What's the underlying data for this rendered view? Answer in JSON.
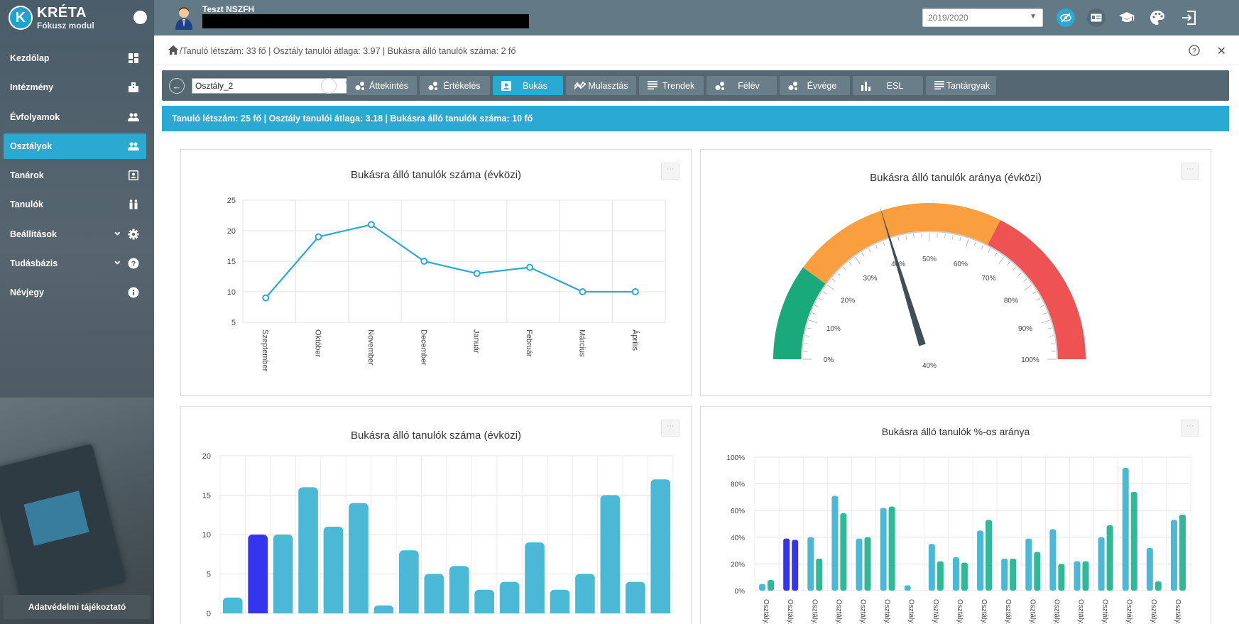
{
  "brand": {
    "name": "KRÉTA",
    "subtitle": "Fókusz modul",
    "logo_letter": "K"
  },
  "sidebar": {
    "items": [
      {
        "label": "Kezdőlap",
        "icon": "dashboard-icon",
        "active": false,
        "expandable": false
      },
      {
        "label": "Intézmény",
        "icon": "building-icon",
        "active": false,
        "expandable": false
      },
      {
        "label": "Évfolyamok",
        "icon": "users-icon",
        "active": false,
        "expandable": false
      },
      {
        "label": "Osztályok",
        "icon": "users-icon",
        "active": true,
        "expandable": false
      },
      {
        "label": "Tanárok",
        "icon": "teacher-card-icon",
        "active": false,
        "expandable": false
      },
      {
        "label": "Tanulók",
        "icon": "students-icon",
        "active": false,
        "expandable": false
      },
      {
        "label": "Beállítások",
        "icon": "gear-icon",
        "active": false,
        "expandable": true
      },
      {
        "label": "Tudásbázis",
        "icon": "help-icon",
        "active": false,
        "expandable": true
      },
      {
        "label": "Névjegy",
        "icon": "info-icon",
        "active": false,
        "expandable": false
      }
    ],
    "privacy_label": "Adatvédelmi tájékoztató"
  },
  "header": {
    "user_name": "Teszt NSZFH",
    "school_year": "2019/2020",
    "icons": [
      "visibility-off-icon",
      "id-card-icon",
      "graduation-cap-icon",
      "palette-icon",
      "logout-icon"
    ]
  },
  "breadcrumb": {
    "text": "/Tanuló létszám: 33 fő | Osztály tanulói átlaga: 3.97 | Bukásra álló tanulók száma: 2 fő"
  },
  "toolbar": {
    "class_selected": "Osztály_2",
    "tabs": [
      {
        "label": "Áttekintés",
        "icon": "bubble-icon",
        "active": false
      },
      {
        "label": "Értékelés",
        "icon": "bubble-icon",
        "active": false
      },
      {
        "label": "Bukás",
        "icon": "contact-icon",
        "active": true
      },
      {
        "label": "Mulasztás",
        "icon": "trend-icon",
        "active": false
      },
      {
        "label": "Trendek",
        "icon": "lines-icon",
        "active": false
      },
      {
        "label": "Félév",
        "icon": "bubble-icon",
        "active": false
      },
      {
        "label": "Évvége",
        "icon": "bubble-icon",
        "active": false
      },
      {
        "label": "ESL",
        "icon": "bar-chart-icon",
        "active": false
      },
      {
        "label": "Tantárgyak",
        "icon": "lines-icon",
        "active": false
      }
    ]
  },
  "info_strip": "Tanuló létszám: 25 fő | Osztály tanulói átlaga: 3.18 | Bukásra álló tanulók száma: 10 fő",
  "chart_data": [
    {
      "type": "line",
      "title": "Bukásra álló tanulók száma (évközi)",
      "categories": [
        "Szeptember",
        "Október",
        "November",
        "December",
        "Január",
        "Február",
        "Március",
        "Április"
      ],
      "values": [
        9,
        19,
        21,
        15,
        13,
        14,
        10,
        10
      ],
      "ylim": [
        5,
        25
      ],
      "yticks": [
        5,
        10,
        15,
        20,
        25
      ],
      "color": "#2aa9d2",
      "grid": true
    },
    {
      "type": "gauge",
      "title": "Bukásra álló tanulók aránya (évközi)",
      "value": 40,
      "value_label": "40%",
      "ticks": [
        "0%",
        "10%",
        "20%",
        "30%",
        "40%",
        "50%",
        "60%",
        "70%",
        "80%",
        "90%",
        "100%"
      ],
      "bands": [
        {
          "from": 0,
          "to": 20,
          "color": "#1aa97a"
        },
        {
          "from": 20,
          "to": 65,
          "color": "#f99f3f"
        },
        {
          "from": 65,
          "to": 100,
          "color": "#ee5253"
        }
      ]
    },
    {
      "type": "bar",
      "title": "Bukásra álló tanulók száma (évközi)",
      "values": [
        2,
        10,
        10,
        16,
        11,
        14,
        1,
        8,
        5,
        6,
        3,
        4,
        9,
        3,
        5,
        15,
        4,
        17
      ],
      "highlight_index": 1,
      "color": "#4bb8d6",
      "highlight_color": "#3535f0",
      "ylim": [
        0,
        20
      ],
      "yticks": [
        0,
        5,
        10,
        15,
        20
      ],
      "grid": true
    },
    {
      "type": "bar",
      "title": "Bukásra álló tanulók %-os aránya",
      "categories": [
        "Osztály...",
        "Osztály...",
        "Osztály...",
        "Osztály...",
        "Osztály...",
        "Osztály...",
        "Osztály...",
        "Osztály...",
        "Osztály...",
        "Osztály...",
        "Osztály...",
        "Osztály...",
        "Osztály...",
        "Osztály...",
        "Osztály...",
        "Osztály...",
        "Osztály...",
        "Osztály..."
      ],
      "series": [
        {
          "values": [
            5,
            39,
            40,
            71,
            39,
            62,
            4,
            35,
            25,
            45,
            24,
            39,
            46,
            22,
            40,
            92,
            32,
            53
          ],
          "color": "#4bb8d6"
        },
        {
          "values": [
            8,
            38,
            24,
            58,
            40,
            63,
            0,
            22,
            21,
            53,
            24,
            29,
            20,
            22,
            49,
            74,
            7,
            57
          ],
          "color": "#2fb996"
        }
      ],
      "highlight_index": 1,
      "highlight_color": "#3535f0",
      "ylim": [
        0,
        100
      ],
      "yticks": [
        "0%",
        "20%",
        "40%",
        "60%",
        "80%",
        "100%"
      ],
      "grid": true
    }
  ]
}
